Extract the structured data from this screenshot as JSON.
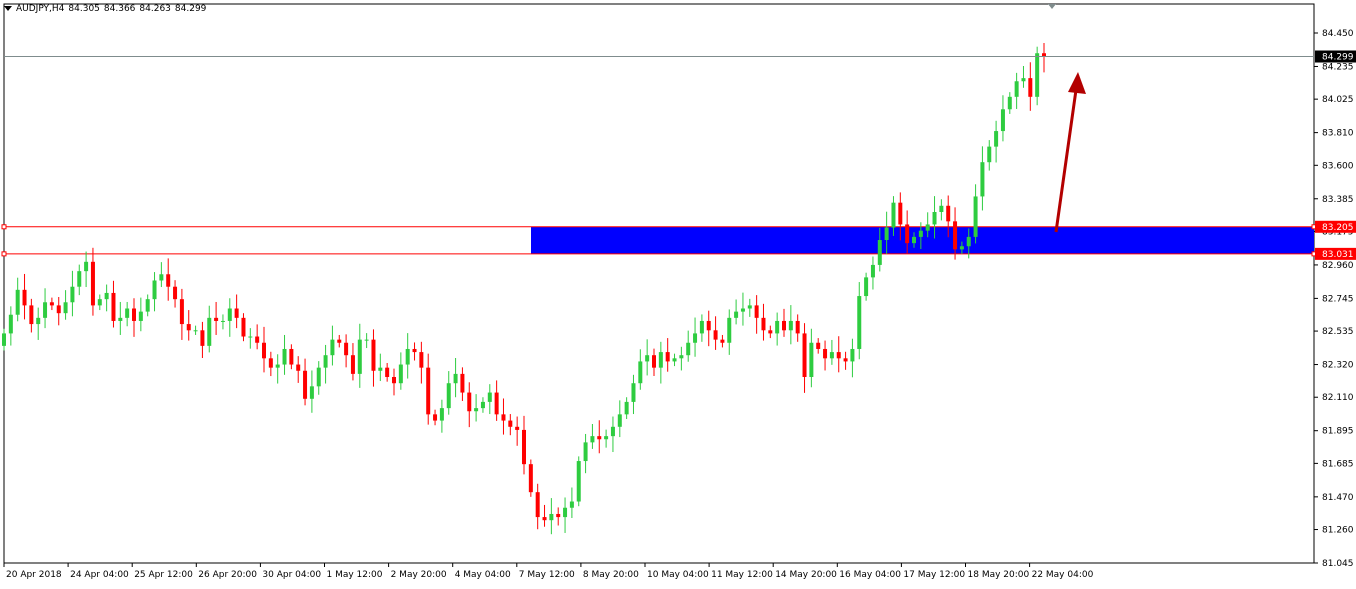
{
  "header": {
    "symbol": "AUDJPY,H4",
    "open": "84.305",
    "high": "84.366",
    "low": "84.263",
    "close": "84.299"
  },
  "colors": {
    "bull": "#2ecc40",
    "bear": "#ff0000",
    "zone_fill": "#0000ff",
    "zone_border": "#ff0000",
    "arrow": "#b30000",
    "current_price_badge": "#000000"
  },
  "chart_data": {
    "type": "candlestick",
    "symbol": "AUDJPY",
    "timeframe": "H4",
    "ylim": [
      81.045,
      84.45
    ],
    "y_ticks": [
      "84.450",
      "84.235",
      "84.025",
      "83.810",
      "83.600",
      "83.385",
      "83.175",
      "82.960",
      "82.745",
      "82.535",
      "82.320",
      "82.110",
      "81.895",
      "81.685",
      "81.470",
      "81.260",
      "81.045"
    ],
    "x_labels": [
      "20 Apr 2018",
      "24 Apr 04:00",
      "25 Apr 12:00",
      "26 Apr 20:00",
      "30 Apr 04:00",
      "1 May 12:00",
      "2 May 20:00",
      "4 May 04:00",
      "7 May 12:00",
      "8 May 20:00",
      "10 May 04:00",
      "11 May 12:00",
      "14 May 20:00",
      "16 May 04:00",
      "17 May 12:00",
      "18 May 20:00",
      "22 May 04:00"
    ],
    "current_price": "84.299",
    "zone": {
      "upper": "83.205",
      "lower": "83.031",
      "upper_value": 83.205,
      "lower_value": 83.031
    },
    "annotation": "red arrow pointing up from zone toward price",
    "closes": [
      82.52,
      82.64,
      82.8,
      82.7,
      82.58,
      82.62,
      82.72,
      82.7,
      82.65,
      82.72,
      82.82,
      82.92,
      82.98,
      82.7,
      82.74,
      82.78,
      82.6,
      82.62,
      82.68,
      82.6,
      82.66,
      82.74,
      82.86,
      82.9,
      82.82,
      82.74,
      82.58,
      82.54,
      82.54,
      82.44,
      82.62,
      82.6,
      82.6,
      82.68,
      82.62,
      82.5,
      82.5,
      82.46,
      82.36,
      82.3,
      82.32,
      82.42,
      82.32,
      82.28,
      82.1,
      82.18,
      82.3,
      82.38,
      82.48,
      82.46,
      82.38,
      82.26,
      82.48,
      82.48,
      82.28,
      82.3,
      82.24,
      82.2,
      82.32,
      82.42,
      82.4,
      82.3,
      82.0,
      81.96,
      82.04,
      82.2,
      82.26,
      82.14,
      82.02,
      82.04,
      82.08,
      82.14,
      82.0,
      81.96,
      81.92,
      81.9,
      81.68,
      81.5,
      81.34,
      81.32,
      81.36,
      81.34,
      81.4,
      81.44,
      81.7,
      81.82,
      81.86,
      81.84,
      81.86,
      81.92,
      82.0,
      82.08,
      82.2,
      82.34,
      82.38,
      82.3,
      82.4,
      82.34,
      82.36,
      82.38,
      82.46,
      82.52,
      82.6,
      82.54,
      82.48,
      82.46,
      82.62,
      82.66,
      82.68,
      82.7,
      82.62,
      82.54,
      82.52,
      82.6,
      82.54,
      82.6,
      82.52,
      82.24,
      82.46,
      82.42,
      82.36,
      82.4,
      82.36,
      82.34,
      82.42,
      82.76,
      82.88,
      82.96,
      83.12,
      83.2,
      83.36,
      83.22,
      83.1,
      83.14,
      83.18,
      83.22,
      83.3,
      83.34,
      83.24,
      83.06,
      83.08,
      83.14,
      83.4,
      83.62,
      83.72,
      83.82,
      83.96,
      84.04,
      84.14,
      84.16,
      84.04,
      84.32,
      84.299
    ]
  }
}
